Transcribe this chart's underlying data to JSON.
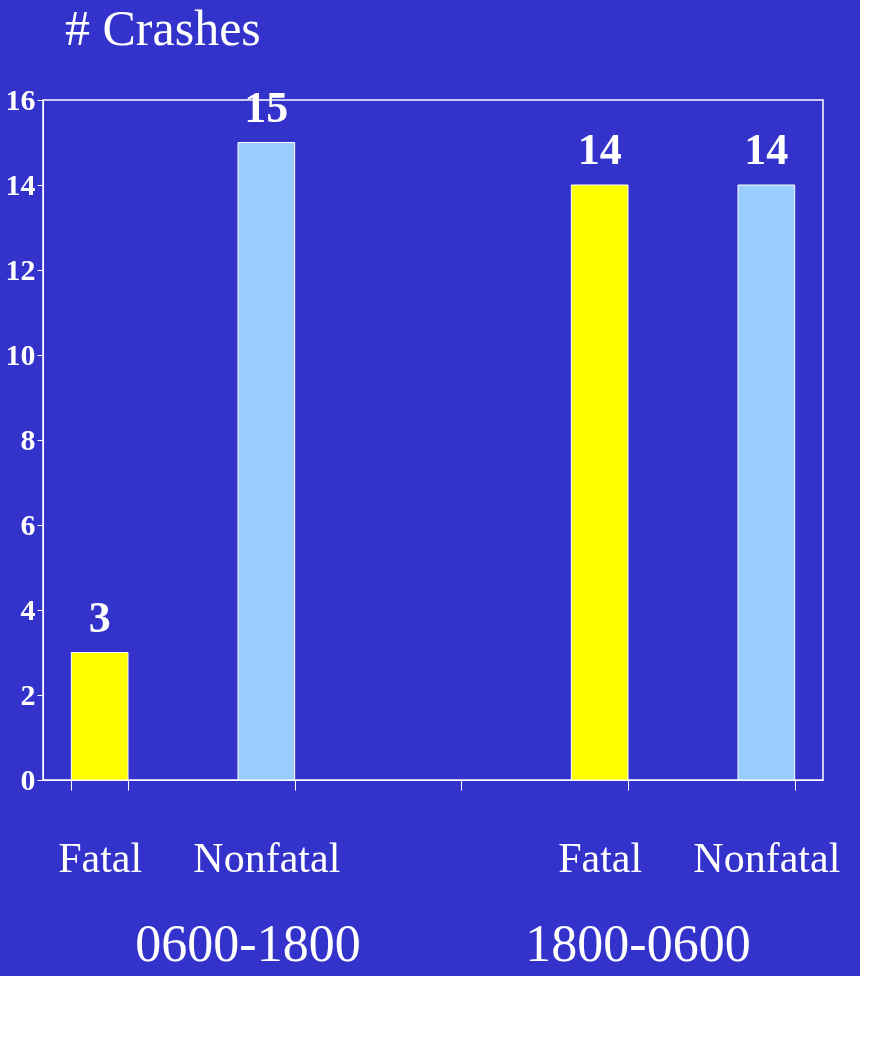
{
  "chart_data": {
    "type": "bar",
    "title": "# Crashes",
    "categories": [
      "Fatal",
      "Nonfatal",
      null,
      "Fatal",
      "Nonfatal"
    ],
    "values": [
      3,
      15,
      null,
      14,
      14
    ],
    "colors": [
      "#ffff00",
      "#99ccff",
      null,
      "#ffff00",
      "#99ccff"
    ],
    "ylim": [
      0,
      16
    ],
    "yticks": [
      0,
      2,
      4,
      6,
      8,
      10,
      12,
      14,
      16
    ],
    "data_labels": true,
    "grid": false,
    "annotations": [
      "0600-1800",
      "1800-0600"
    ]
  }
}
